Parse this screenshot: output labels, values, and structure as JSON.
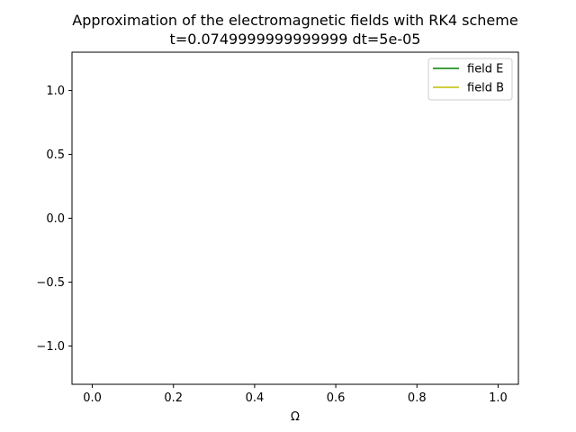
{
  "chart_data": {
    "type": "line",
    "title": "Approximation of the electromagnetic fields with RK4 scheme",
    "subtitle": "t=0.0749999999999999 dt=5e-05",
    "xlabel": "Ω",
    "ylabel": "",
    "xlim": [
      -0.05,
      1.05
    ],
    "ylim": [
      -1.3,
      1.3
    ],
    "x_ticks": [
      0.0,
      0.2,
      0.4,
      0.6,
      0.8,
      1.0
    ],
    "x_tick_labels": [
      "0.0",
      "0.2",
      "0.4",
      "0.6",
      "0.8",
      "1.0"
    ],
    "y_ticks": [
      1.0,
      0.5,
      0.0,
      -0.5,
      -1.0
    ],
    "y_tick_labels": [
      "1.0",
      "0.5",
      "0.0",
      "−0.5",
      "−1.0"
    ],
    "grid": false,
    "legend_position": "top-right",
    "series": [
      {
        "name": "field E",
        "color": "#008000",
        "x": [],
        "y": []
      },
      {
        "name": "field B",
        "color": "#bfbf00",
        "x": [],
        "y": []
      }
    ]
  }
}
